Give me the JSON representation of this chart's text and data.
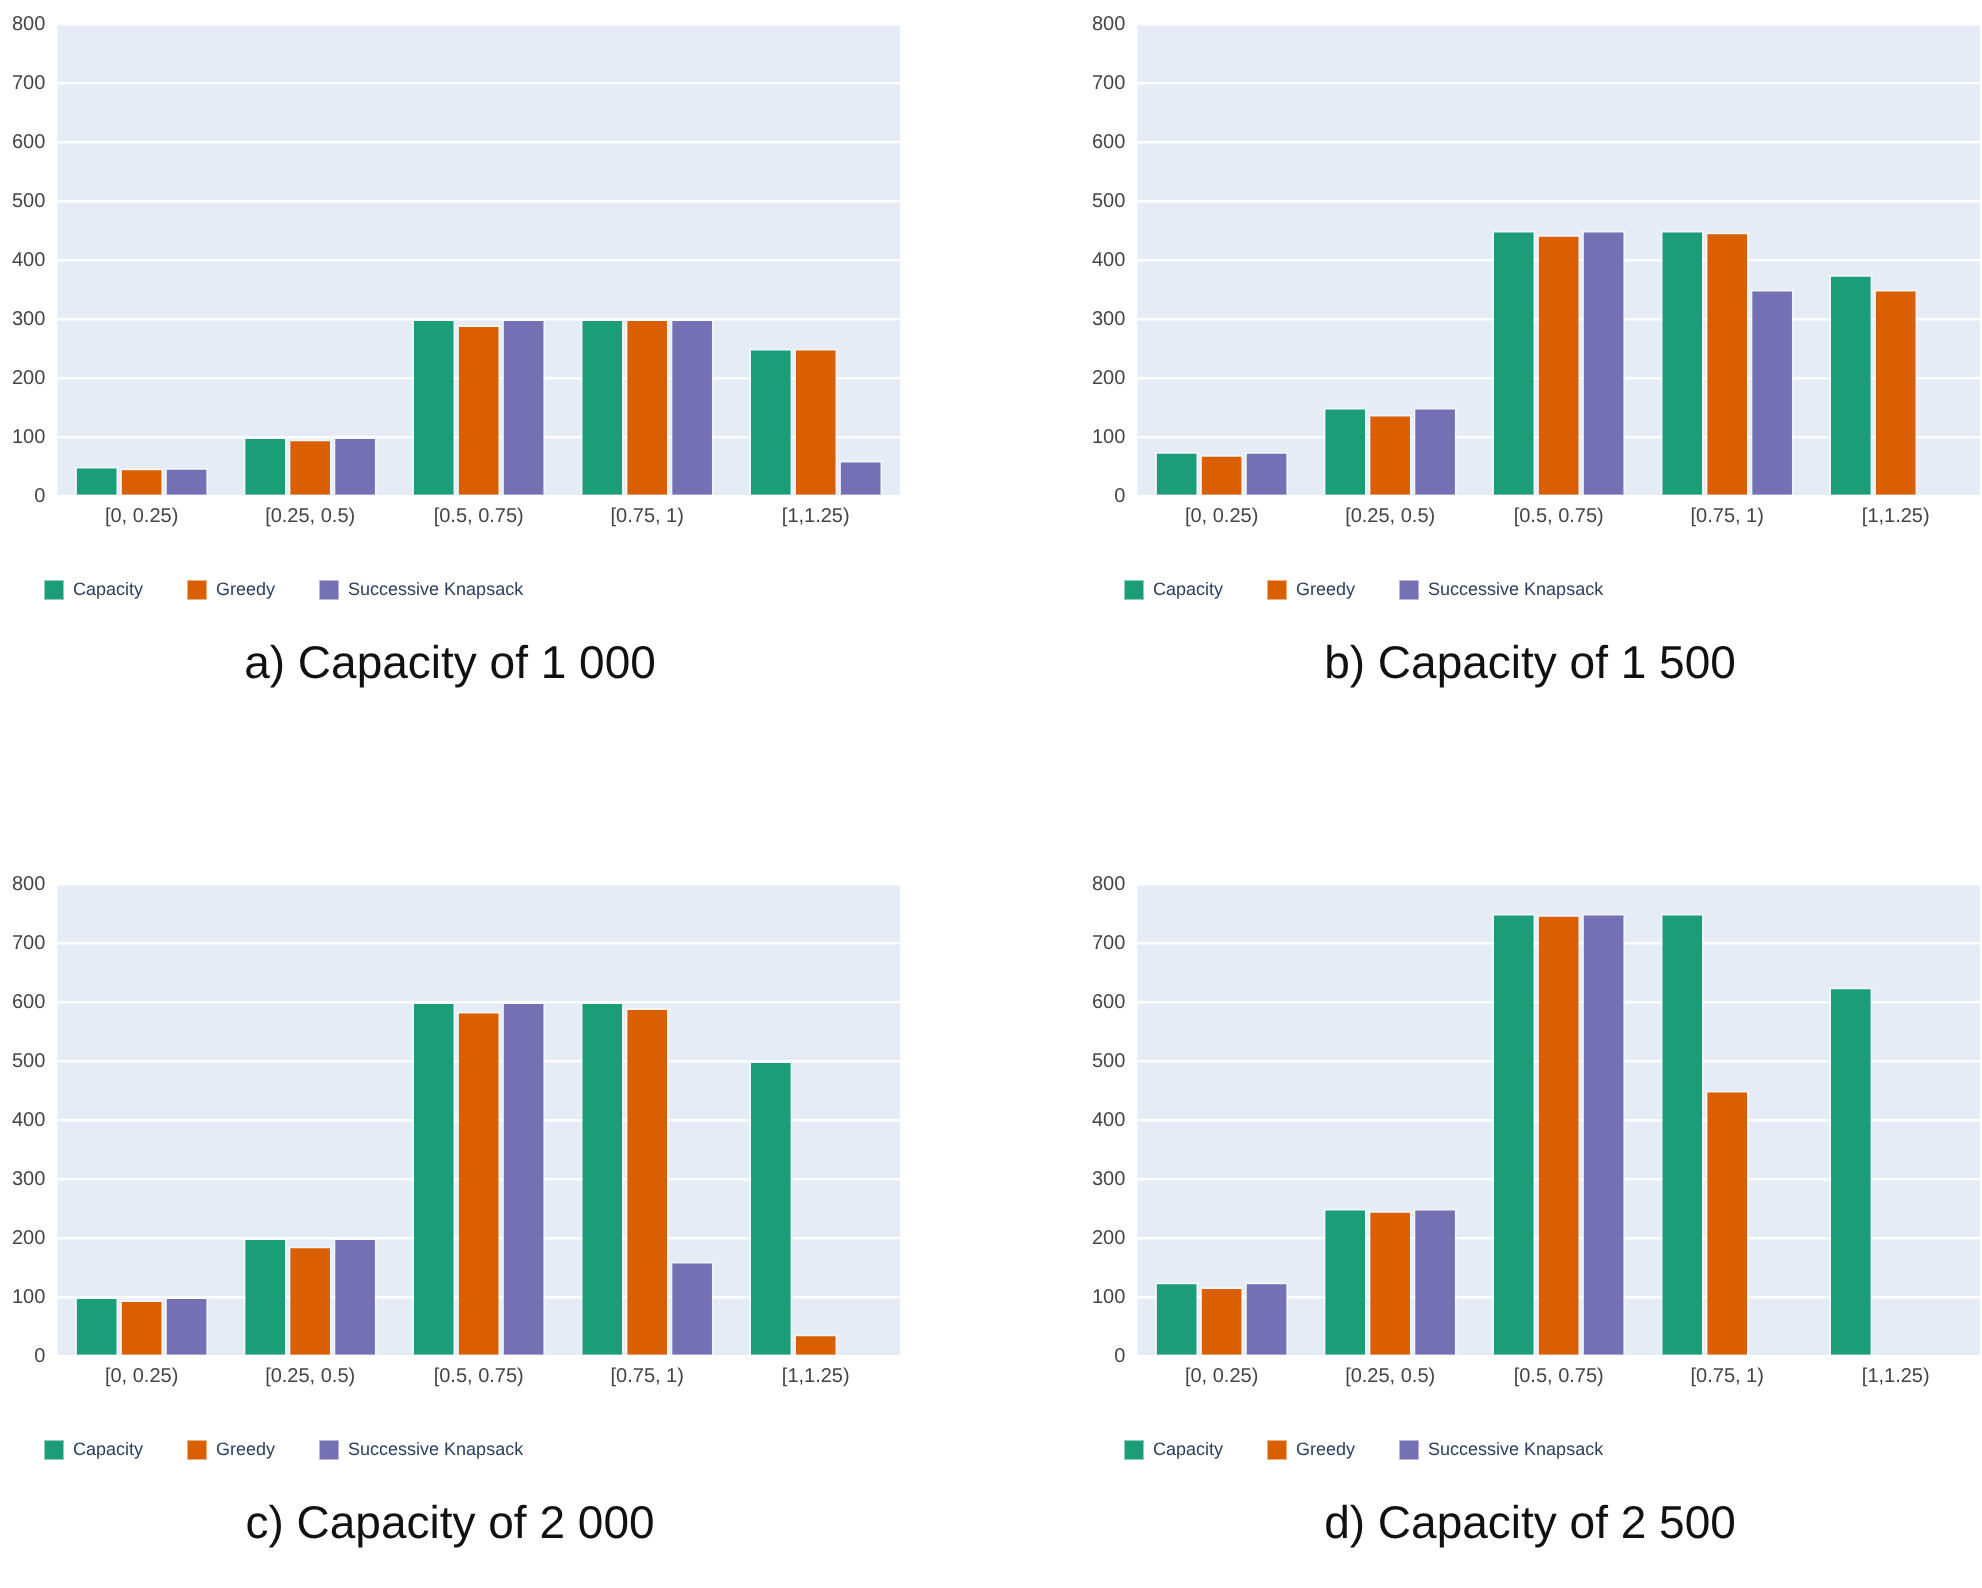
{
  "chart_data": [
    {
      "type": "bar",
      "title": "a) Capacity of 1 000",
      "categories": [
        "[0, 0.25)",
        "[0.25, 0.5)",
        "[0.5, 0.75)",
        "[0.75, 1)",
        "[1,1.25)"
      ],
      "series": [
        {
          "name": "Capacity",
          "color": "#1b9e77",
          "values": [
            50,
            100,
            300,
            300,
            250
          ]
        },
        {
          "name": "Greedy",
          "color": "#d95f02",
          "values": [
            47,
            96,
            290,
            300,
            250
          ]
        },
        {
          "name": "Successive Knapsack",
          "color": "#7570b3",
          "values": [
            48,
            100,
            300,
            300,
            60
          ]
        }
      ],
      "ylim": [
        0,
        800
      ],
      "yticks": [
        0,
        100,
        200,
        300,
        400,
        500,
        600,
        700,
        800
      ],
      "grid": "y",
      "legend": "bottom left"
    },
    {
      "type": "bar",
      "title": "b) Capacity of 1 500",
      "categories": [
        "[0, 0.25)",
        "[0.25, 0.5)",
        "[0.5, 0.75)",
        "[0.75, 1)",
        "[1,1.25)"
      ],
      "series": [
        {
          "name": "Capacity",
          "color": "#1b9e77",
          "values": [
            75,
            150,
            450,
            450,
            375
          ]
        },
        {
          "name": "Greedy",
          "color": "#d95f02",
          "values": [
            70,
            138,
            443,
            447,
            350
          ]
        },
        {
          "name": "Successive Knapsack",
          "color": "#7570b3",
          "values": [
            75,
            150,
            450,
            350,
            0
          ]
        }
      ],
      "ylim": [
        0,
        800
      ],
      "yticks": [
        0,
        100,
        200,
        300,
        400,
        500,
        600,
        700,
        800
      ],
      "grid": "y",
      "legend": "bottom left"
    },
    {
      "type": "bar",
      "title": "c) Capacity of 2 000",
      "categories": [
        "[0, 0.25)",
        "[0.25, 0.5)",
        "[0.5, 0.75)",
        "[0.75, 1)",
        "[1,1.25)"
      ],
      "series": [
        {
          "name": "Capacity",
          "color": "#1b9e77",
          "values": [
            100,
            200,
            600,
            600,
            500
          ]
        },
        {
          "name": "Greedy",
          "color": "#d95f02",
          "values": [
            95,
            186,
            584,
            590,
            37
          ]
        },
        {
          "name": "Successive Knapsack",
          "color": "#7570b3",
          "values": [
            100,
            200,
            600,
            160,
            0
          ]
        }
      ],
      "ylim": [
        0,
        800
      ],
      "yticks": [
        0,
        100,
        200,
        300,
        400,
        500,
        600,
        700,
        800
      ],
      "grid": "y",
      "legend": "bottom left"
    },
    {
      "type": "bar",
      "title": "d) Capacity of 2 500",
      "categories": [
        "[0, 0.25)",
        "[0.25, 0.5)",
        "[0.5, 0.75)",
        "[0.75, 1)",
        "[1,1.25)"
      ],
      "series": [
        {
          "name": "Capacity",
          "color": "#1b9e77",
          "values": [
            125,
            250,
            750,
            750,
            625
          ]
        },
        {
          "name": "Greedy",
          "color": "#d95f02",
          "values": [
            117,
            246,
            748,
            450,
            0
          ]
        },
        {
          "name": "Successive Knapsack",
          "color": "#7570b3",
          "values": [
            125,
            250,
            750,
            0,
            0
          ]
        }
      ],
      "ylim": [
        0,
        800
      ],
      "yticks": [
        0,
        100,
        200,
        300,
        400,
        500,
        600,
        700,
        800
      ],
      "grid": "y",
      "legend": "bottom left"
    }
  ]
}
